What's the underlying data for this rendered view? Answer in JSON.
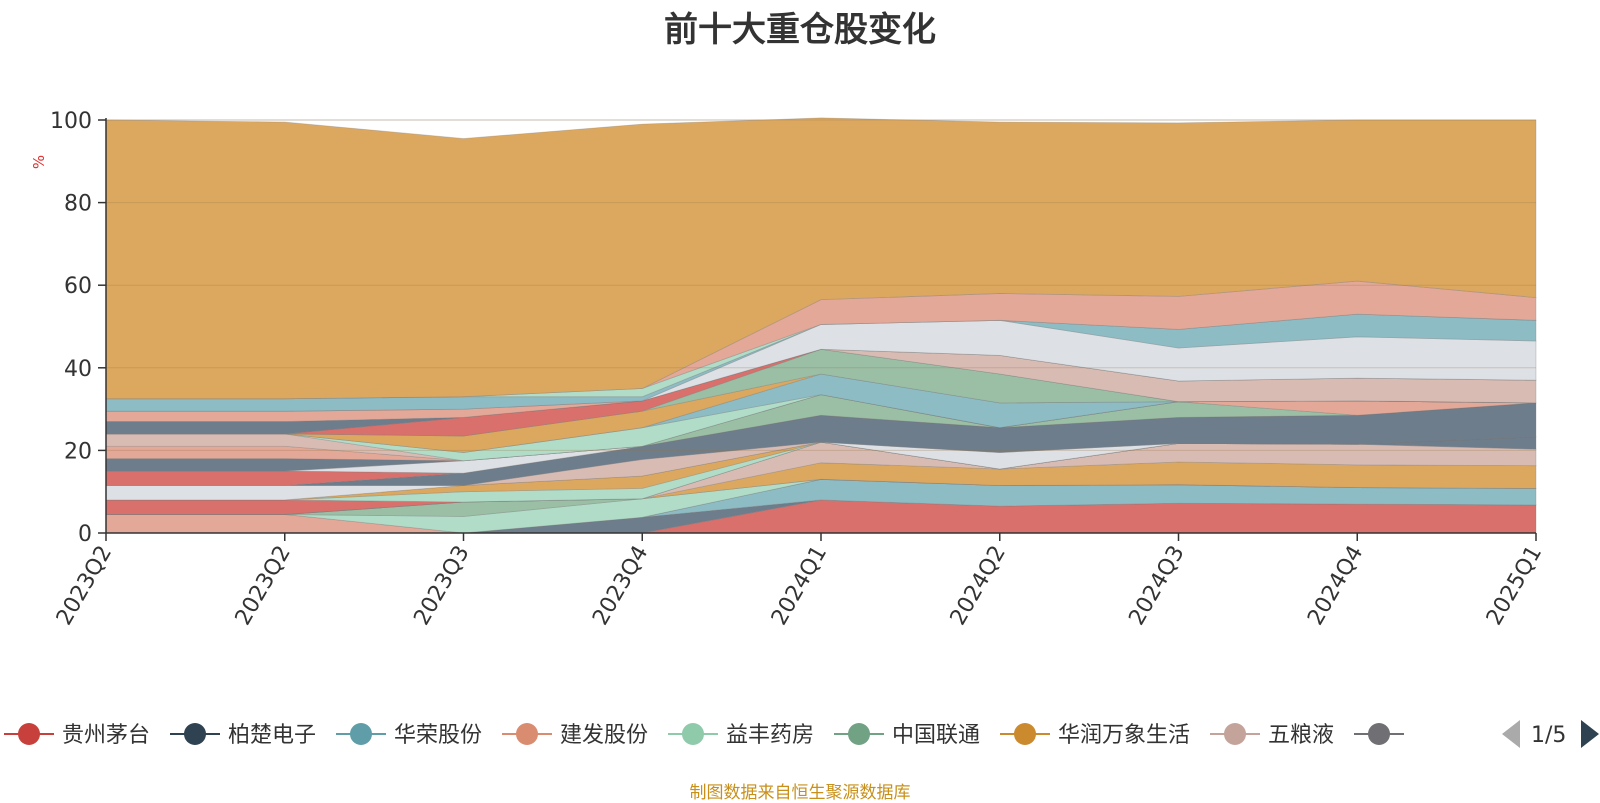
{
  "chart_data": {
    "type": "area",
    "stacked": true,
    "title": "前十大重仓股变化",
    "ylabel": "%",
    "ylim": [
      0,
      100
    ],
    "yticks": [
      "0",
      "20",
      "40",
      "60",
      "80",
      "100"
    ],
    "categories": [
      "2023Q2",
      "2023Q2",
      "2023Q3",
      "2023Q4",
      "2024Q1",
      "2024Q2",
      "2024Q3",
      "2024Q4",
      "2025Q1"
    ],
    "series": [
      {
        "name": "贵州茅台",
        "color": "#d9706c",
        "values": [
          0,
          0,
          0,
          0,
          8,
          6.5,
          7.2,
          7,
          6.8
        ]
      },
      {
        "name": "柏楚电子",
        "color": "#6e7d8c",
        "values": [
          0,
          0,
          0,
          3.8,
          0,
          0,
          0,
          0,
          0
        ]
      },
      {
        "name": "华荣股份",
        "color": "#8dbcc4",
        "values": [
          0,
          0,
          0,
          0,
          5,
          5,
          4.5,
          4,
          4
        ]
      },
      {
        "name": "建发股份",
        "color": "#e3a898",
        "values": [
          4.5,
          4.5,
          0,
          0,
          0,
          0,
          0,
          0,
          0
        ]
      },
      {
        "name": "益丰药房",
        "color": "#b0dcc8",
        "values": [
          0,
          0,
          4,
          4.5,
          0,
          0,
          0,
          0,
          0
        ]
      },
      {
        "name": "中国联通",
        "color": "#9bbfa5",
        "values": [
          0,
          0,
          3.5,
          0,
          0,
          0,
          0,
          0,
          0
        ]
      },
      {
        "name": "华润万象生活",
        "color": "#dca860",
        "values": [
          0,
          0,
          0,
          0,
          4,
          4,
          5.5,
          5.5,
          5.5
        ]
      },
      {
        "name": "五粮液",
        "color": "#d8bcb4",
        "values": [
          0,
          0,
          0,
          0,
          5,
          0,
          4.5,
          5,
          4
        ]
      },
      {
        "name": "",
        "color": "#6e7d8c",
        "values": [
          0,
          0,
          0,
          0,
          0,
          0,
          0,
          0,
          3
        ]
      },
      {
        "name": "",
        "color": "#d9706c",
        "values": [
          3.5,
          3.5,
          0,
          0,
          0,
          0,
          0,
          0,
          0
        ]
      },
      {
        "name": "",
        "color": "#b0dcc8",
        "values": [
          0,
          0,
          2.5,
          2.5,
          0,
          0,
          0,
          0,
          0
        ]
      },
      {
        "name": "",
        "color": "#dca860",
        "values": [
          0,
          0,
          1.5,
          3,
          0,
          0,
          0,
          0,
          0
        ]
      },
      {
        "name": "",
        "color": "#dde0e4",
        "values": [
          3.5,
          3.5,
          0,
          0,
          0,
          4,
          0,
          0,
          0
        ]
      },
      {
        "name": "",
        "color": "#d8bcb4",
        "values": [
          0,
          0,
          0,
          4,
          0,
          0,
          0,
          0,
          0
        ]
      },
      {
        "name": "",
        "color": "#6e7d8c",
        "values": [
          0,
          0,
          3,
          3.2,
          6.5,
          6,
          6.3,
          7,
          8.2
        ]
      },
      {
        "name": "",
        "color": "#d9706c",
        "values": [
          3.5,
          3.5,
          0,
          0,
          0,
          0,
          0,
          0,
          0
        ]
      },
      {
        "name": "",
        "color": "#dde0e4",
        "values": [
          0,
          0,
          3,
          0,
          0,
          0,
          0,
          0,
          0
        ]
      },
      {
        "name": "",
        "color": "#6e7d8c",
        "values": [
          3,
          3,
          0,
          0,
          0,
          0,
          0,
          0,
          0
        ]
      },
      {
        "name": "",
        "color": "#9bbfa5",
        "values": [
          0,
          0,
          0,
          0,
          5,
          0,
          3.8,
          0,
          0
        ]
      },
      {
        "name": "",
        "color": "#e3a898",
        "values": [
          3,
          3,
          0,
          0,
          0,
          0,
          0,
          3.5,
          0
        ]
      },
      {
        "name": "",
        "color": "#d8bcb4",
        "values": [
          3,
          3,
          0,
          0,
          0,
          0,
          0,
          0,
          0
        ]
      },
      {
        "name": "",
        "color": "#b0dcc8",
        "values": [
          0,
          0,
          2,
          4.5,
          0,
          0,
          0,
          0,
          0
        ]
      },
      {
        "name": "",
        "color": "#8dbcc4",
        "values": [
          0,
          0,
          0,
          0,
          5,
          6,
          0,
          0,
          0
        ]
      },
      {
        "name": "",
        "color": "#dca860",
        "values": [
          0,
          0,
          4,
          4,
          0,
          0,
          0,
          0,
          0
        ]
      },
      {
        "name": "",
        "color": "#9bbfa5",
        "values": [
          0,
          0,
          0,
          0,
          6,
          7,
          0,
          0,
          0
        ]
      },
      {
        "name": "",
        "color": "#d9706c",
        "values": [
          0,
          0,
          4.5,
          2.5,
          0,
          0,
          0,
          0,
          0
        ]
      },
      {
        "name": "",
        "color": "#d8bcb4",
        "values": [
          0,
          0,
          0,
          0,
          0,
          4.5,
          5,
          5.5,
          5.5
        ]
      },
      {
        "name": "",
        "color": "#6e7d8c",
        "values": [
          3,
          3,
          0,
          0,
          0,
          0,
          0,
          0,
          0
        ]
      },
      {
        "name": "",
        "color": "#e3a898",
        "values": [
          2.5,
          2.5,
          2,
          0,
          0,
          0,
          0,
          0,
          0
        ]
      },
      {
        "name": "",
        "color": "#dde0e4",
        "values": [
          0,
          0,
          0,
          0,
          6,
          8.5,
          8,
          10,
          9.5
        ]
      },
      {
        "name": "",
        "color": "#8dbcc4",
        "values": [
          3,
          3,
          3,
          1,
          0,
          0,
          4.5,
          5.5,
          5
        ]
      },
      {
        "name": "",
        "color": "#b0dcc8",
        "values": [
          0,
          0,
          0,
          2,
          0,
          0,
          0,
          0,
          0
        ]
      },
      {
        "name": "",
        "color": "#e3a898",
        "values": [
          0,
          0,
          0,
          0,
          6,
          6.5,
          8,
          8,
          5.5
        ]
      },
      {
        "name": "",
        "color": "#dca860",
        "values": [
          67.5,
          67,
          62.5,
          64,
          44,
          41.5,
          42,
          39,
          43
        ]
      }
    ],
    "legend": {
      "position": "bottom",
      "items": [
        {
          "name": "贵州茅台",
          "color": "#c8403c"
        },
        {
          "name": "柏楚电子",
          "color": "#2e4252"
        },
        {
          "name": "华荣股份",
          "color": "#5f9ea8"
        },
        {
          "name": "建发股份",
          "color": "#d98c70"
        },
        {
          "name": "益丰药房",
          "color": "#8fcaaa"
        },
        {
          "name": "中国联通",
          "color": "#72a284"
        },
        {
          "name": "华润万象生活",
          "color": "#cc8a2e"
        },
        {
          "name": "五粮液",
          "color": "#c4a49a"
        },
        {
          "name": "",
          "color": "#6f6f74"
        }
      ],
      "page": "1/5"
    }
  },
  "footer": {
    "source": "制图数据来自恒生聚源数据库"
  }
}
